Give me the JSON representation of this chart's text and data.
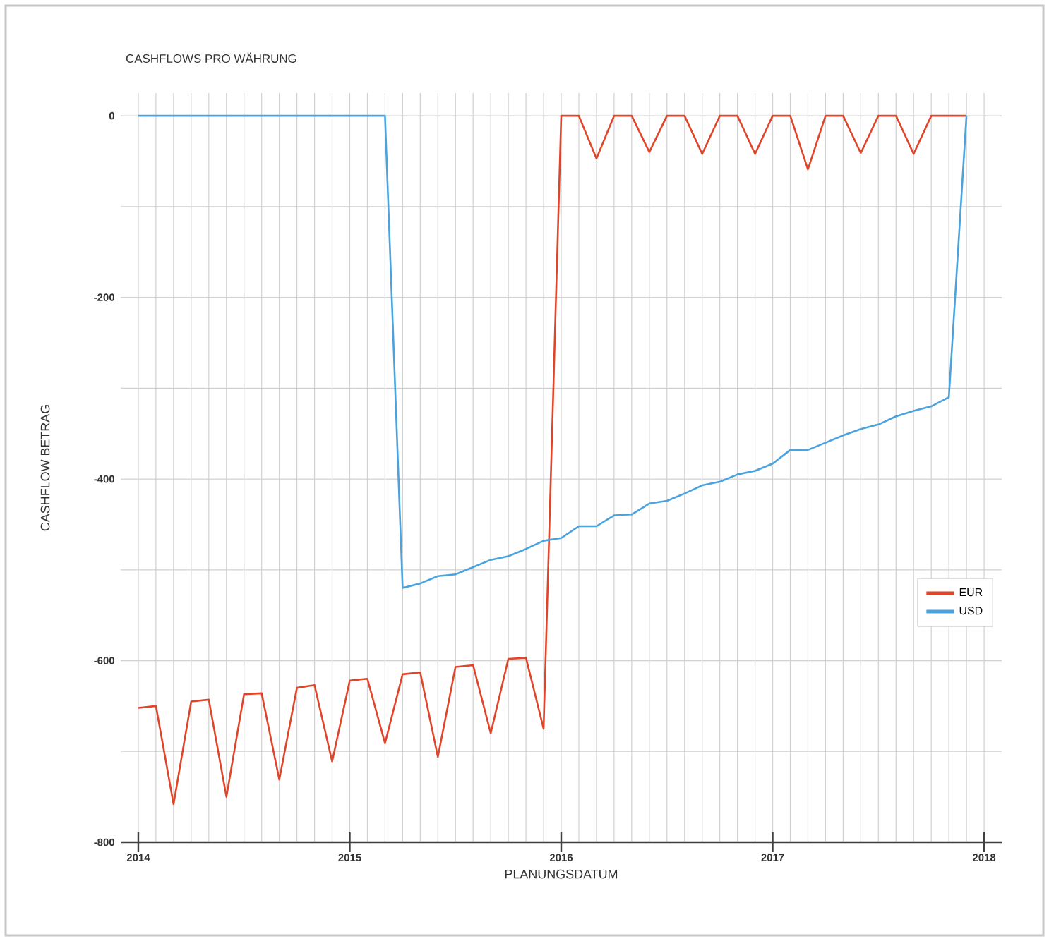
{
  "chart_data": {
    "type": "line",
    "title": "CASHFLOWS PRO WÄHRUNG",
    "xlabel": "PLANUNGSDATUM",
    "ylabel": "CASHFLOW BETRAG",
    "x": [
      "2014-01",
      "2014-02",
      "2014-03",
      "2014-04",
      "2014-05",
      "2014-06",
      "2014-07",
      "2014-08",
      "2014-09",
      "2014-10",
      "2014-11",
      "2014-12",
      "2015-01",
      "2015-02",
      "2015-03",
      "2015-04",
      "2015-05",
      "2015-06",
      "2015-07",
      "2015-08",
      "2015-09",
      "2015-10",
      "2015-11",
      "2015-12",
      "2016-01",
      "2016-02",
      "2016-03",
      "2016-04",
      "2016-05",
      "2016-06",
      "2016-07",
      "2016-08",
      "2016-09",
      "2016-10",
      "2016-11",
      "2016-12",
      "2017-01",
      "2017-02",
      "2017-03",
      "2017-04",
      "2017-05",
      "2017-06",
      "2017-07",
      "2017-08",
      "2017-09",
      "2017-10",
      "2017-11",
      "2017-12"
    ],
    "series": [
      {
        "name": "EUR",
        "color": "#e0452a",
        "values": [
          -652,
          -650,
          -758,
          -645,
          -643,
          -750,
          -637,
          -636,
          -731,
          -630,
          -627,
          -711,
          -622,
          -620,
          -691,
          -615,
          -613,
          -706,
          -607,
          -605,
          -680,
          -598,
          -597,
          -675,
          0,
          0,
          -47,
          0,
          0,
          -40,
          0,
          0,
          -42,
          0,
          0,
          -42,
          0,
          0,
          -59,
          0,
          0,
          -41,
          0,
          0,
          -42,
          0,
          0,
          0
        ]
      },
      {
        "name": "USD",
        "color": "#4aa3df",
        "values": [
          0,
          0,
          0,
          0,
          0,
          0,
          0,
          0,
          0,
          0,
          0,
          0,
          0,
          0,
          0,
          -520,
          -515,
          -507,
          -505,
          -497,
          -489,
          -485,
          -477,
          -468,
          -465,
          -452,
          -452,
          -440,
          -439,
          -427,
          -424,
          -416,
          -407,
          -403,
          -395,
          -391,
          -383,
          -368,
          -368,
          -360,
          -352,
          -345,
          -340,
          -331,
          -325,
          -320,
          -310,
          0
        ]
      }
    ],
    "xlim": [
      "2013-12",
      "2018-02"
    ],
    "xticks": [
      {
        "value": "2014-01",
        "label": "2014"
      },
      {
        "value": "2014-02",
        "label": null
      },
      {
        "value": "2014-03",
        "label": null
      },
      {
        "value": "2014-04",
        "label": null
      },
      {
        "value": "2014-05",
        "label": null
      },
      {
        "value": "2014-06",
        "label": null
      },
      {
        "value": "2014-07",
        "label": null
      },
      {
        "value": "2014-08",
        "label": null
      },
      {
        "value": "2014-09",
        "label": null
      },
      {
        "value": "2014-10",
        "label": null
      },
      {
        "value": "2014-11",
        "label": null
      },
      {
        "value": "2014-12",
        "label": null
      },
      {
        "value": "2015-01",
        "label": "2015"
      },
      {
        "value": "2015-02",
        "label": null
      },
      {
        "value": "2015-03",
        "label": null
      },
      {
        "value": "2015-04",
        "label": null
      },
      {
        "value": "2015-05",
        "label": null
      },
      {
        "value": "2015-06",
        "label": null
      },
      {
        "value": "2015-07",
        "label": null
      },
      {
        "value": "2015-08",
        "label": null
      },
      {
        "value": "2015-09",
        "label": null
      },
      {
        "value": "2015-10",
        "label": null
      },
      {
        "value": "2015-11",
        "label": null
      },
      {
        "value": "2015-12",
        "label": null
      },
      {
        "value": "2016-01",
        "label": "2016"
      },
      {
        "value": "2016-02",
        "label": null
      },
      {
        "value": "2016-03",
        "label": null
      },
      {
        "value": "2016-04",
        "label": null
      },
      {
        "value": "2016-05",
        "label": null
      },
      {
        "value": "2016-06",
        "label": null
      },
      {
        "value": "2016-07",
        "label": null
      },
      {
        "value": "2016-08",
        "label": null
      },
      {
        "value": "2016-09",
        "label": null
      },
      {
        "value": "2016-10",
        "label": null
      },
      {
        "value": "2016-11",
        "label": null
      },
      {
        "value": "2016-12",
        "label": null
      },
      {
        "value": "2017-01",
        "label": "2017"
      },
      {
        "value": "2017-02",
        "label": null
      },
      {
        "value": "2017-03",
        "label": null
      },
      {
        "value": "2017-04",
        "label": null
      },
      {
        "value": "2017-05",
        "label": null
      },
      {
        "value": "2017-06",
        "label": null
      },
      {
        "value": "2017-07",
        "label": null
      },
      {
        "value": "2017-08",
        "label": null
      },
      {
        "value": "2017-09",
        "label": null
      },
      {
        "value": "2017-10",
        "label": null
      },
      {
        "value": "2017-11",
        "label": null
      },
      {
        "value": "2017-12",
        "label": null
      },
      {
        "value": "2018-01",
        "label": "2018"
      }
    ],
    "ylim": [
      -800,
      25
    ],
    "yticks": [
      -800,
      {
        "value": -700,
        "label": null
      },
      -600,
      {
        "value": -500,
        "label": null
      },
      -400,
      {
        "value": -300,
        "label": null
      },
      -200,
      {
        "value": -100,
        "label": null
      },
      0
    ],
    "grid": true,
    "legend": "right",
    "marker": "none",
    "line_style": "solid"
  }
}
